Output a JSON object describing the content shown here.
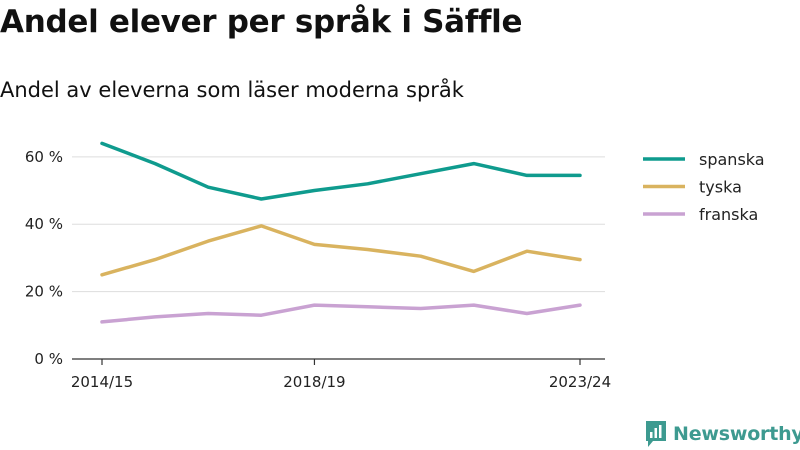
{
  "header": {
    "title": "Andel elever per språk i Säffle",
    "subtitle": "Andel av eleverna som läser moderna språk"
  },
  "brand": {
    "name": "Newsworthy",
    "color": "#3d9a90",
    "icon": "newsworthy-logo-icon"
  },
  "chart_data": {
    "type": "line",
    "x": [
      "2014/15",
      "2015/16",
      "2016/17",
      "2017/18",
      "2018/19",
      "2019/20",
      "2020/21",
      "2021/22",
      "2022/23",
      "2023/24"
    ],
    "x_tick_labels": [
      "2014/15",
      "2018/19",
      "2023/24"
    ],
    "y_ticks": [
      0,
      20,
      40,
      60
    ],
    "y_tick_labels": [
      "0 %",
      "20 %",
      "40 %",
      "60 %"
    ],
    "ylim": [
      0,
      65
    ],
    "grid": true,
    "legend_position": "right",
    "xlabel": "",
    "ylabel": "",
    "series": [
      {
        "name": "spanska",
        "color": "#0f9b8e",
        "values": [
          64,
          58,
          51,
          47.5,
          50,
          52,
          55,
          58,
          54.5,
          54.5
        ]
      },
      {
        "name": "tyska",
        "color": "#d9b35f",
        "values": [
          25,
          29.5,
          35,
          39.5,
          34,
          32.5,
          30.5,
          26,
          32,
          29.5
        ]
      },
      {
        "name": "franska",
        "color": "#c9a2d2",
        "values": [
          11,
          12.5,
          13.5,
          13,
          16,
          15.5,
          15,
          16,
          13.5,
          16
        ]
      }
    ]
  }
}
